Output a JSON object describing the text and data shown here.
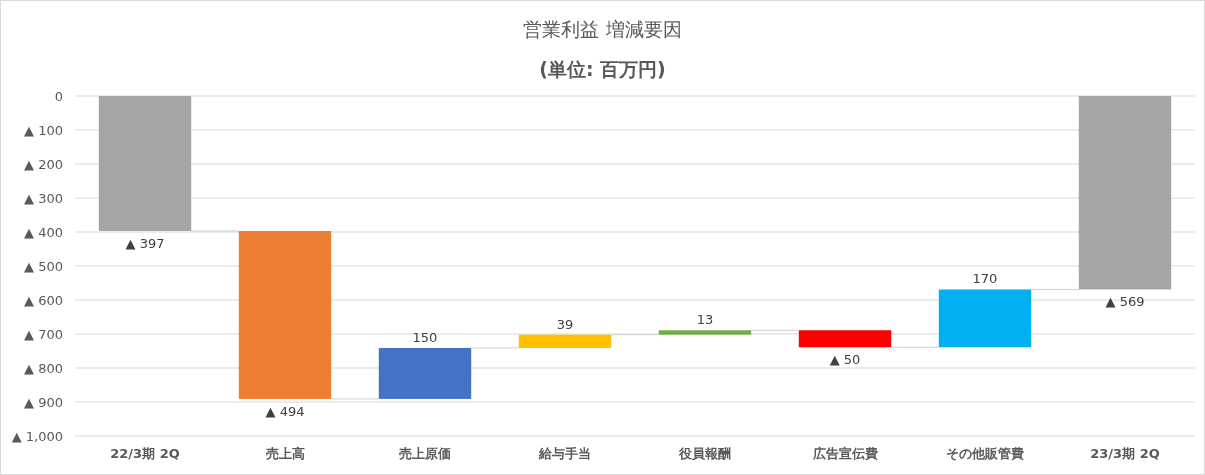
{
  "chart_data": {
    "type": "bar",
    "title": "営業利益 増減要因",
    "subtitle": "(単位: 百万円)",
    "categories": [
      "22/3期 2Q",
      "売上高",
      "売上原価",
      "給与手当",
      "役員報酬",
      "広告宣伝費",
      "その他販管費",
      "23/3期 2Q"
    ],
    "base": [
      0,
      -397,
      -891,
      -741,
      -702,
      -689,
      -739,
      0
    ],
    "values": [
      -397,
      -494,
      150,
      39,
      13,
      -50,
      170,
      -569
    ],
    "colors": [
      "#a5a5a5",
      "#ed7d31",
      "#4472c4",
      "#ffc000",
      "#70ad47",
      "#ff0000",
      "#00b0f0",
      "#a5a5a5"
    ],
    "value_labels": [
      "▲ 397",
      "▲ 494",
      "150",
      "39",
      "13",
      "▲ 50",
      "170",
      "▲ 569"
    ],
    "ylim": [
      -1000,
      0
    ],
    "yticks": [
      0,
      {
        "value": -100,
        "label": "▲ 100"
      },
      {
        "value": -200,
        "label": "▲ 200"
      },
      {
        "value": -300,
        "label": "▲ 300"
      },
      {
        "value": -400,
        "label": "▲ 400"
      },
      {
        "value": -500,
        "label": "▲ 500"
      },
      {
        "value": -600,
        "label": "▲ 600"
      },
      {
        "value": -700,
        "label": "▲ 700"
      },
      {
        "value": -800,
        "label": "▲ 800"
      },
      {
        "value": -900,
        "label": "▲ 900"
      },
      {
        "value": -1000,
        "label": "▲ 1,000"
      }
    ],
    "grid": "y"
  }
}
